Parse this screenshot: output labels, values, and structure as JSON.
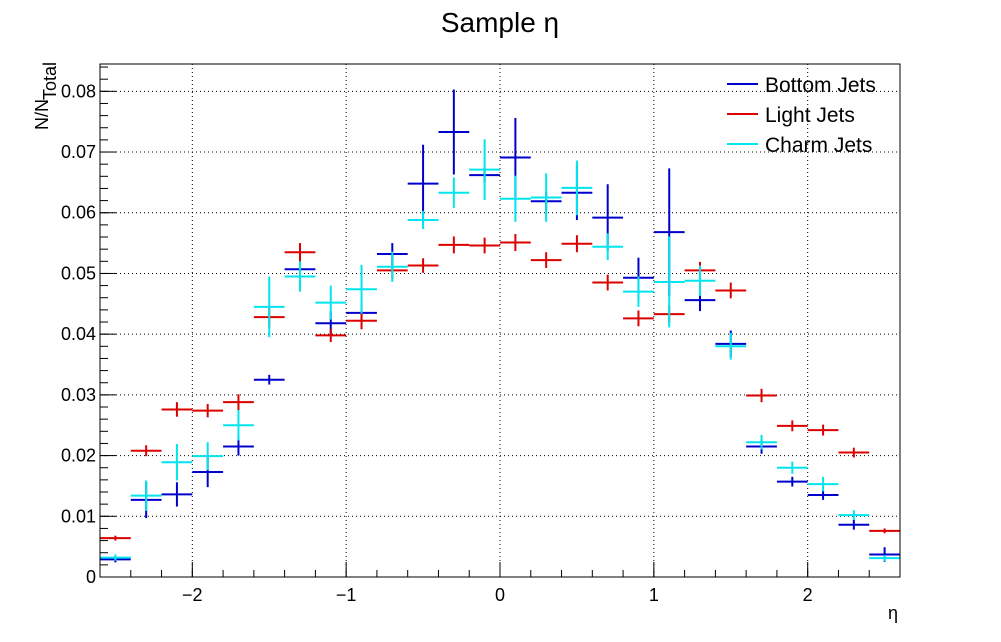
{
  "chart_data": {
    "type": "scatter",
    "title": "Sample η",
    "xlabel": "η",
    "ylabel_main": "N/N",
    "ylabel_sub": "Total",
    "xlim": [
      -2.6,
      2.6
    ],
    "ylim": [
      0,
      0.0845
    ],
    "grid": true,
    "legend_position": "top-right",
    "x_ticks": [
      {
        "value": -2,
        "label": "−2"
      },
      {
        "value": -1,
        "label": "−1"
      },
      {
        "value": 0,
        "label": "0"
      },
      {
        "value": 1,
        "label": "1"
      },
      {
        "value": 2,
        "label": "2"
      }
    ],
    "y_ticks": [
      {
        "value": 0,
        "label": "0"
      },
      {
        "value": 0.01,
        "label": "0.01"
      },
      {
        "value": 0.02,
        "label": "0.02"
      },
      {
        "value": 0.03,
        "label": "0.03"
      },
      {
        "value": 0.04,
        "label": "0.04"
      },
      {
        "value": 0.05,
        "label": "0.05"
      },
      {
        "value": 0.06,
        "label": "0.06"
      },
      {
        "value": 0.07,
        "label": "0.07"
      },
      {
        "value": 0.08,
        "label": "0.08"
      }
    ],
    "bin_half_width": 0.1,
    "x": [
      -2.5,
      -2.3,
      -2.1,
      -1.9,
      -1.7,
      -1.5,
      -1.3,
      -1.1,
      -0.9,
      -0.7,
      -0.5,
      -0.3,
      -0.1,
      0.1,
      0.3,
      0.5,
      0.7,
      0.9,
      1.1,
      1.3,
      1.5,
      1.7,
      1.9,
      2.1,
      2.3,
      2.5
    ],
    "series": [
      {
        "name": "Bottom Jets",
        "color": "#0000cc",
        "values": [
          0.0029,
          0.0127,
          0.0136,
          0.0173,
          0.0215,
          0.0325,
          0.0507,
          0.0418,
          0.0435,
          0.0532,
          0.0648,
          0.0733,
          0.0662,
          0.0691,
          0.0619,
          0.0633,
          0.0592,
          0.0493,
          0.0568,
          0.0456,
          0.0384,
          0.0215,
          0.0157,
          0.0135,
          0.0086,
          0.0037
        ],
        "errors": [
          0.0005,
          0.003,
          0.002,
          0.0025,
          0.0015,
          0.0008,
          0.0025,
          0.002,
          0.0015,
          0.0018,
          0.0064,
          0.007,
          0.0012,
          0.0065,
          0.0015,
          0.0045,
          0.0055,
          0.0033,
          0.0105,
          0.0018,
          0.0022,
          0.0012,
          0.0008,
          0.0008,
          0.0008,
          0.0012
        ]
      },
      {
        "name": "Light Jets",
        "color": "#dd0000",
        "values": [
          0.0064,
          0.0208,
          0.0276,
          0.0274,
          0.0288,
          0.0428,
          0.0535,
          0.0398,
          0.0422,
          0.0505,
          0.0513,
          0.0547,
          0.0546,
          0.0551,
          0.0522,
          0.0549,
          0.0485,
          0.0426,
          0.0433,
          0.0505,
          0.0472,
          0.0299,
          0.0249,
          0.0242,
          0.0205,
          0.0076
        ],
        "errors": [
          0.0004,
          0.0009,
          0.0012,
          0.0011,
          0.0013,
          0.0017,
          0.0015,
          0.0011,
          0.0014,
          0.0014,
          0.0012,
          0.0014,
          0.0013,
          0.0014,
          0.0013,
          0.0014,
          0.0013,
          0.0013,
          0.0014,
          0.0014,
          0.0013,
          0.0011,
          0.0009,
          0.0009,
          0.0008,
          0.0004
        ]
      },
      {
        "name": "Charm Jets",
        "color": "#00e5ee",
        "values": [
          0.0032,
          0.0134,
          0.0189,
          0.0199,
          0.025,
          0.0445,
          0.0495,
          0.0452,
          0.0474,
          0.0511,
          0.0588,
          0.0633,
          0.0671,
          0.0623,
          0.0625,
          0.0641,
          0.0544,
          0.047,
          0.0486,
          0.0488,
          0.038,
          0.0222,
          0.018,
          0.0153,
          0.0102,
          0.0031
        ],
        "errors": [
          0.0005,
          0.0025,
          0.003,
          0.0023,
          0.0025,
          0.005,
          0.0025,
          0.0028,
          0.004,
          0.0025,
          0.0015,
          0.0025,
          0.005,
          0.0038,
          0.004,
          0.0045,
          0.0022,
          0.0025,
          0.0075,
          0.0025,
          0.0022,
          0.0012,
          0.001,
          0.0012,
          0.0008,
          0.0005
        ]
      }
    ]
  }
}
